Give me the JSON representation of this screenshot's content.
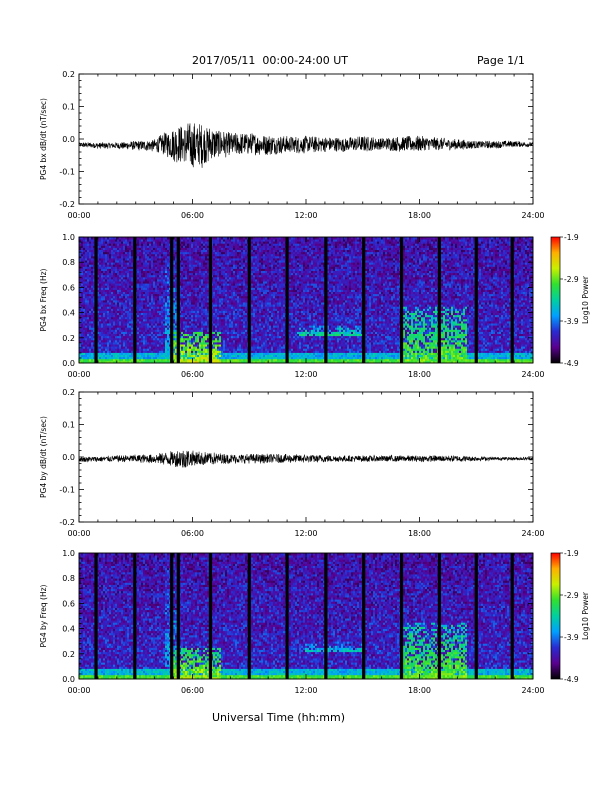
{
  "header": {
    "title": "2017/05/11  00:00-24:00 UT",
    "page": "Page 1/1"
  },
  "footer": {
    "xlabel": "Universal Time (hh:mm)"
  },
  "colors": {
    "background": "#ffffff",
    "trace": "#000000",
    "colorbar": [
      "#000000",
      "#5a0090",
      "#2a2ad0",
      "#00a0ff",
      "#00d0a0",
      "#30e030",
      "#c8f000",
      "#ffb000",
      "#ff0000"
    ]
  },
  "chart_data": [
    {
      "type": "line",
      "ylabel": "PG4 bx dB/dt (nT/sec)",
      "ylim": [
        -0.2,
        0.2
      ],
      "yticks": [
        "-0.2",
        "-0.1",
        "0.0",
        "0.1",
        "0.2"
      ],
      "xlim": [
        0,
        24
      ],
      "xticks": [
        "00:00",
        "06:00",
        "12:00",
        "18:00",
        "24:00"
      ],
      "grid": false,
      "x": [
        0,
        1,
        2,
        3,
        4,
        4.5,
        5,
        5.5,
        6,
        6.5,
        7,
        7.5,
        8,
        9,
        10,
        11,
        12,
        13,
        14,
        15,
        16,
        17,
        18,
        19,
        20,
        21,
        22,
        23,
        24
      ],
      "y_upper_envelope": [
        -0.01,
        -0.01,
        -0.01,
        -0.005,
        0.0,
        0.02,
        0.04,
        0.05,
        0.055,
        0.05,
        0.04,
        0.03,
        0.02,
        0.02,
        0.015,
        0.01,
        0.01,
        0.008,
        0.005,
        0.01,
        0.005,
        0.01,
        0.01,
        0.005,
        0.0,
        -0.005,
        -0.005,
        -0.005,
        -0.01
      ],
      "y_lower_envelope": [
        -0.025,
        -0.03,
        -0.03,
        -0.035,
        -0.04,
        -0.05,
        -0.07,
        -0.08,
        -0.1,
        -0.09,
        -0.07,
        -0.06,
        -0.055,
        -0.05,
        -0.05,
        -0.045,
        -0.045,
        -0.04,
        -0.04,
        -0.04,
        -0.035,
        -0.04,
        -0.04,
        -0.035,
        -0.035,
        -0.03,
        -0.03,
        -0.025,
        -0.025
      ]
    },
    {
      "type": "heatmap",
      "ylabel": "PG4 bx Freq (Hz)",
      "ylim": [
        0.0,
        1.0
      ],
      "yticks": [
        "0.0",
        "0.2",
        "0.4",
        "0.6",
        "0.8",
        "1.0"
      ],
      "xlim": [
        0,
        24
      ],
      "xticks": [
        "00:00",
        "06:00",
        "12:00",
        "18:00",
        "24:00"
      ],
      "colorbar_label": "Log10 Power",
      "colorbar_range": [
        -4.9,
        -1.9
      ],
      "colorbar_ticks": [
        "-1.9",
        "-2.9",
        "-3.9",
        "-4.9"
      ],
      "data_gaps_hours": [
        0.9,
        2.95,
        4.9,
        5.25,
        6.95,
        9.0,
        11.0,
        13.05,
        15.05,
        17.05,
        19.05,
        21.0,
        22.9
      ],
      "features": [
        {
          "t_start": 5.0,
          "t_end": 7.5,
          "f_max": 0.25,
          "level": -2.6
        },
        {
          "t_start": 4.5,
          "t_end": 5.2,
          "f_max": 0.95,
          "level": -3.6
        },
        {
          "t_start": 11.5,
          "t_end": 15.0,
          "f_min": 0.22,
          "f_max": 0.3,
          "level": -3.3
        },
        {
          "t_start": 17.0,
          "t_end": 20.5,
          "f_max": 0.45,
          "level": -2.9
        }
      ]
    },
    {
      "type": "line",
      "ylabel": "PG4 by dB/dt (nT/sec)",
      "ylim": [
        -0.2,
        0.2
      ],
      "yticks": [
        "-0.2",
        "-0.1",
        "0.0",
        "0.1",
        "0.2"
      ],
      "xlim": [
        0,
        24
      ],
      "xticks": [
        "00:00",
        "06:00",
        "12:00",
        "18:00",
        "24:00"
      ],
      "grid": false,
      "x": [
        0,
        2,
        4,
        5,
        5.5,
        6,
        7,
        8,
        10,
        12,
        14,
        16,
        18,
        20,
        22,
        24
      ],
      "y_upper_envelope": [
        0.0,
        0.005,
        0.01,
        0.02,
        0.03,
        0.02,
        0.015,
        0.01,
        0.01,
        0.008,
        0.005,
        0.005,
        0.005,
        0.005,
        0.0,
        0.0
      ],
      "y_lower_envelope": [
        -0.015,
        -0.015,
        -0.02,
        -0.03,
        -0.04,
        -0.03,
        -0.025,
        -0.02,
        -0.02,
        -0.018,
        -0.015,
        -0.015,
        -0.015,
        -0.015,
        -0.01,
        -0.01
      ]
    },
    {
      "type": "heatmap",
      "ylabel": "PG4 by Freq (Hz)",
      "ylim": [
        0.0,
        1.0
      ],
      "yticks": [
        "0.0",
        "0.2",
        "0.4",
        "0.6",
        "0.8",
        "1.0"
      ],
      "xlim": [
        0,
        24
      ],
      "xticks": [
        "00:00",
        "06:00",
        "12:00",
        "18:00",
        "24:00"
      ],
      "colorbar_label": "Log10 Power",
      "colorbar_range": [
        -4.9,
        -1.9
      ],
      "colorbar_ticks": [
        "-1.9",
        "-2.9",
        "-3.9",
        "-4.9"
      ],
      "data_gaps_hours": [
        0.9,
        2.95,
        4.9,
        5.25,
        6.95,
        9.0,
        11.0,
        13.05,
        15.05,
        17.05,
        19.05,
        21.0,
        22.9
      ],
      "features": [
        {
          "t_start": 5.0,
          "t_end": 7.5,
          "f_max": 0.25,
          "level": -2.7
        },
        {
          "t_start": 4.5,
          "t_end": 5.2,
          "f_max": 0.95,
          "level": -3.6
        },
        {
          "t_start": 12.0,
          "t_end": 15.0,
          "f_min": 0.22,
          "f_max": 0.3,
          "level": -3.5
        },
        {
          "t_start": 17.0,
          "t_end": 20.5,
          "f_max": 0.45,
          "level": -2.9
        }
      ]
    }
  ]
}
